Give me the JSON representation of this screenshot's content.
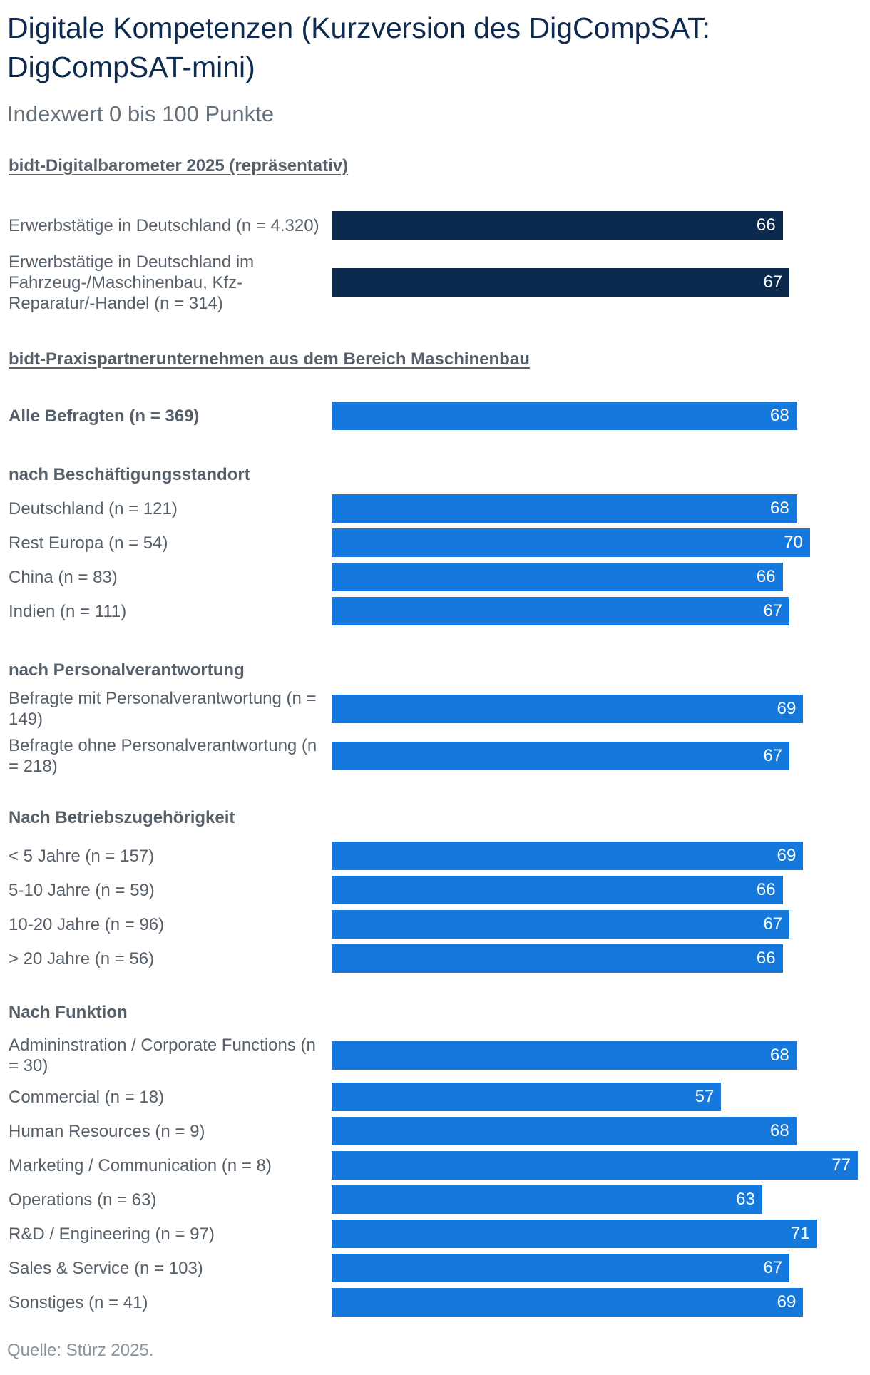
{
  "title": "Digitale Kompetenzen (Kurzversion des DigCompSAT: DigCompSAT-mini)",
  "subtitle": "Indexwert 0 bis 100 Punkte",
  "source": "Quelle: Stürz 2025.",
  "colors": {
    "dark": "#0c2a4e",
    "blue": "#1578dc"
  },
  "chart_data": {
    "type": "bar",
    "orientation": "horizontal",
    "xlim": [
      0,
      77
    ],
    "sections": [
      {
        "title": "bidt-Digitalbarometer 2025 (repräsentativ)",
        "underlined": true,
        "color": "dark",
        "rows": [
          {
            "label": "Erwerbstätige in Deutschland (n = 4.320)",
            "value": 66
          },
          {
            "label": "Erwerbstätige in Deutschland im Fahrzeug-/Maschinenbau, Kfz-Reparatur/-Handel (n = 314)",
            "value": 67
          }
        ]
      },
      {
        "title": "bidt-Praxispartnerunternehmen aus dem Bereich Maschinenbau",
        "underlined": true,
        "color": "blue",
        "rows": [
          {
            "label": "Alle Befragten (n = 369)",
            "value": 68,
            "bold": true
          }
        ]
      },
      {
        "title": "nach Beschäftigungsstandort",
        "color": "blue",
        "rows": [
          {
            "label": "Deutschland (n = 121)",
            "value": 68
          },
          {
            "label": "Rest Europa (n = 54)",
            "value": 70
          },
          {
            "label": "China (n = 83)",
            "value": 66
          },
          {
            "label": "Indien (n = 111)",
            "value": 67
          }
        ]
      },
      {
        "title": "nach Personalverantwortung",
        "color": "blue",
        "rows": [
          {
            "label": "Befragte mit Personalverantwortung (n = 149)",
            "value": 69
          },
          {
            "label": "Befragte ohne Personalverantwortung (n = 218)",
            "value": 67
          }
        ]
      },
      {
        "title": "Nach Betriebszugehörigkeit",
        "color": "blue",
        "rows": [
          {
            "label": "< 5 Jahre (n = 157)",
            "value": 69
          },
          {
            "label": "5-10 Jahre (n = 59)",
            "value": 66
          },
          {
            "label": "10-20 Jahre (n = 96)",
            "value": 67
          },
          {
            "label": "> 20 Jahre (n = 56)",
            "value": 66
          }
        ]
      },
      {
        "title": "Nach Funktion",
        "color": "blue",
        "rows": [
          {
            "label": "Admininstration / Corporate Functions (n = 30)",
            "value": 68
          },
          {
            "label": "Commercial (n = 18)",
            "value": 57
          },
          {
            "label": "Human Resources (n = 9)",
            "value": 68
          },
          {
            "label": "Marketing / Communication (n = 8)",
            "value": 77
          },
          {
            "label": "Operations (n = 63)",
            "value": 63
          },
          {
            "label": "R&D / Engineering (n = 97)",
            "value": 71
          },
          {
            "label": "Sales & Service (n = 103)",
            "value": 67
          },
          {
            "label": "Sonstiges (n = 41)",
            "value": 69
          }
        ]
      }
    ]
  }
}
